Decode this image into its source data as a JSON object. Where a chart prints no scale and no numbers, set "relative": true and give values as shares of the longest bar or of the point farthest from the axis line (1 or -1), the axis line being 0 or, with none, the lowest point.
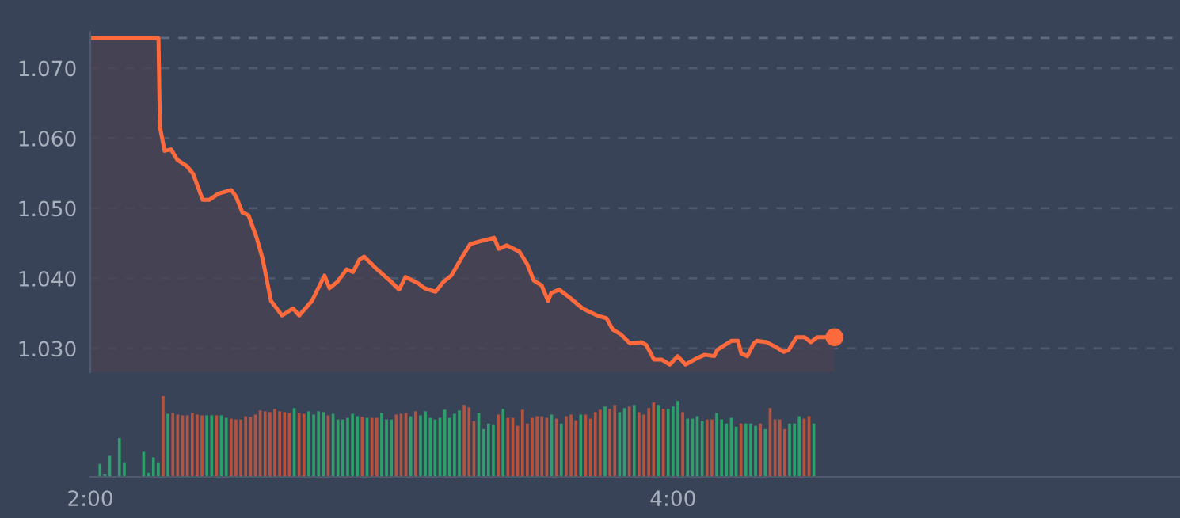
{
  "chart_data": [
    {
      "type": "area",
      "xlim": [
        2,
        5.74
      ],
      "ylim": [
        1.0266,
        1.0752
      ],
      "yticks": [
        {
          "value": 1.03,
          "label": "1.030"
        },
        {
          "value": 1.04,
          "label": "1.040"
        },
        {
          "value": 1.05,
          "label": "1.050"
        },
        {
          "value": 1.06,
          "label": "1.060"
        },
        {
          "value": 1.07,
          "label": "1.070"
        }
      ],
      "tick_labels": "y",
      "grid": "y",
      "ref_lines": [
        {
          "axis": "y",
          "value": 1.0743,
          "color": "#5f6a7e",
          "line_style": "dashed"
        }
      ],
      "series": [
        {
          "type": "area",
          "color": "#ff6a3d",
          "x": [
            2.0,
            2.234,
            2.239,
            2.255,
            2.277,
            2.299,
            2.332,
            2.353,
            2.386,
            2.408,
            2.44,
            2.484,
            2.5,
            2.522,
            2.543,
            2.571,
            2.592,
            2.62,
            2.658,
            2.696,
            2.717,
            2.761,
            2.804,
            2.821,
            2.848,
            2.88,
            2.902,
            2.924,
            2.94,
            2.984,
            3.033,
            3.06,
            3.082,
            3.125,
            3.147,
            3.185,
            3.212,
            3.239,
            3.277,
            3.304,
            3.348,
            3.386,
            3.402,
            3.429,
            3.473,
            3.5,
            3.522,
            3.549,
            3.571,
            3.582,
            3.609,
            3.647,
            3.69,
            3.739,
            3.772,
            3.793,
            3.821,
            3.853,
            3.891,
            3.908,
            3.935,
            3.962,
            3.989,
            4.016,
            4.043,
            4.082,
            4.109,
            4.141,
            4.152,
            4.201,
            4.223,
            4.234,
            4.255,
            4.277,
            4.288,
            4.321,
            4.353,
            4.38,
            4.397,
            4.424,
            4.451,
            4.473,
            4.495,
            4.554
          ],
          "values": [
            1.0743,
            1.0743,
            1.0616,
            1.0582,
            1.0584,
            1.0569,
            1.056,
            1.0549,
            1.0512,
            1.0512,
            1.0521,
            1.0526,
            1.0517,
            1.0494,
            1.049,
            1.0458,
            1.0427,
            1.0368,
            1.0347,
            1.0357,
            1.0347,
            1.0368,
            1.0404,
            1.0386,
            1.0395,
            1.0413,
            1.0409,
            1.0427,
            1.0431,
            1.0413,
            1.0395,
            1.0384,
            1.0402,
            1.0393,
            1.0386,
            1.0381,
            1.0395,
            1.0404,
            1.0431,
            1.0449,
            1.0454,
            1.0458,
            1.0442,
            1.0447,
            1.0438,
            1.042,
            1.0397,
            1.039,
            1.0368,
            1.0379,
            1.0384,
            1.0372,
            1.0357,
            1.0347,
            1.0343,
            1.0327,
            1.032,
            1.0307,
            1.0309,
            1.0305,
            1.0284,
            1.0284,
            1.0277,
            1.0289,
            1.0277,
            1.0286,
            1.0291,
            1.0289,
            1.0298,
            1.0311,
            1.0311,
            1.0293,
            1.0289,
            1.0307,
            1.0311,
            1.0309,
            1.0302,
            1.0295,
            1.0298,
            1.0316,
            1.0316,
            1.0309,
            1.0316,
            1.0316
          ]
        },
        {
          "type": "scatter",
          "color": "#ff6a3d",
          "marker": "circle",
          "x": [
            4.554
          ],
          "values": [
            1.0316
          ]
        }
      ]
    },
    {
      "type": "bar",
      "relative": true,
      "xlim": [
        2,
        5.74
      ],
      "xticks": [
        {
          "value": 2,
          "label": "2:00"
        },
        {
          "value": 4,
          "label": "4:00"
        }
      ],
      "tick_labels": "x",
      "grid": false,
      "x": [
        2.0333,
        2.05,
        2.0667,
        2.0833,
        2.1,
        2.1167,
        2.1333,
        2.15,
        2.1667,
        2.1833,
        2.2,
        2.2167,
        2.2333,
        2.25,
        2.2667,
        2.2833,
        2.3,
        2.3167,
        2.3333,
        2.35,
        2.3667,
        2.3833,
        2.4,
        2.4167,
        2.4333,
        2.45,
        2.4667,
        2.4833,
        2.5,
        2.5167,
        2.5333,
        2.55,
        2.5667,
        2.5833,
        2.6,
        2.6167,
        2.6333,
        2.65,
        2.6667,
        2.6833,
        2.7,
        2.7167,
        2.7333,
        2.75,
        2.7667,
        2.7833,
        2.8,
        2.8167,
        2.8333,
        2.85,
        2.8667,
        2.8833,
        2.9,
        2.9167,
        2.9333,
        2.95,
        2.9667,
        2.9833,
        3,
        3.0167,
        3.0333,
        3.05,
        3.0667,
        3.0833,
        3.1,
        3.1167,
        3.1333,
        3.15,
        3.1667,
        3.1833,
        3.2,
        3.2167,
        3.2333,
        3.25,
        3.2667,
        3.2833,
        3.3,
        3.3167,
        3.3333,
        3.35,
        3.3667,
        3.3833,
        3.4,
        3.4167,
        3.4333,
        3.45,
        3.4667,
        3.4833,
        3.5,
        3.5167,
        3.5333,
        3.55,
        3.5667,
        3.5833,
        3.6,
        3.6167,
        3.6333,
        3.65,
        3.6667,
        3.6833,
        3.7,
        3.7167,
        3.7333,
        3.75,
        3.7667,
        3.7833,
        3.8,
        3.8167,
        3.8333,
        3.85,
        3.8667,
        3.8833,
        3.9,
        3.9167,
        3.9333,
        3.95,
        3.9667,
        3.9833,
        4,
        4.0167,
        4.0333,
        4.05,
        4.0667,
        4.0833,
        4.1,
        4.1167,
        4.1333,
        4.15,
        4.1667,
        4.1833,
        4.2,
        4.2167,
        4.2333,
        4.25,
        4.2667,
        4.2833,
        4.3,
        4.3167,
        4.3333,
        4.35,
        4.3667,
        4.3833,
        4.4,
        4.4167,
        4.4333,
        4.45,
        4.4667,
        4.4833
      ],
      "values": [
        0.16,
        0.03,
        0.26,
        null,
        0.48,
        0.18,
        null,
        null,
        null,
        0.31,
        0.05,
        0.24,
        0.18,
        1.0,
        0.78,
        0.79,
        0.77,
        0.76,
        0.76,
        0.79,
        0.77,
        0.76,
        0.76,
        0.76,
        0.76,
        0.76,
        0.73,
        0.72,
        0.71,
        0.71,
        0.75,
        0.74,
        0.77,
        0.82,
        0.81,
        0.8,
        0.84,
        0.81,
        0.8,
        0.79,
        0.85,
        0.79,
        0.78,
        0.81,
        0.77,
        0.81,
        0.8,
        0.76,
        0.78,
        0.71,
        0.71,
        0.73,
        0.78,
        0.75,
        0.74,
        0.73,
        0.73,
        0.73,
        0.79,
        0.71,
        0.71,
        0.77,
        0.78,
        0.79,
        0.75,
        0.81,
        0.76,
        0.81,
        0.73,
        0.71,
        0.73,
        0.83,
        0.73,
        0.78,
        0.82,
        0.89,
        0.86,
        0.69,
        0.79,
        0.59,
        0.66,
        0.65,
        0.77,
        0.84,
        0.73,
        0.73,
        0.63,
        0.83,
        0.66,
        0.73,
        0.75,
        0.75,
        0.73,
        0.77,
        0.72,
        0.66,
        0.75,
        0.77,
        0.7,
        0.77,
        0.77,
        0.72,
        0.8,
        0.83,
        0.87,
        0.84,
        0.89,
        0.8,
        0.85,
        0.87,
        0.89,
        0.8,
        0.77,
        0.85,
        0.92,
        0.89,
        0.84,
        0.84,
        0.87,
        0.94,
        0.8,
        0.72,
        0.72,
        0.75,
        0.69,
        0.71,
        0.71,
        0.79,
        0.71,
        0.66,
        0.73,
        0.62,
        0.66,
        0.66,
        0.66,
        0.63,
        0.66,
        0.59,
        0.85,
        0.71,
        0.71,
        0.59,
        0.66,
        0.66,
        0.75,
        0.72,
        0.75,
        0.66
      ],
      "colors": [
        "#2e9e6b",
        "#2e9e6b",
        "#2e9e6b",
        "#2e9e6b",
        "#2e9e6b",
        "#2e9e6b",
        "#2e9e6b",
        "#2e9e6b",
        "#2e9e6b",
        "#2e9e6b",
        "#2e9e6b",
        "#2e9e6b",
        "#2e9e6b",
        "#b5533f",
        "#2e9e6b",
        "#b5533f",
        "#b5533f",
        "#b5533f",
        "#b5533f",
        "#b5533f",
        "#b5533f",
        "#b5533f",
        "#2e9e6b",
        "#2e9e6b",
        "#b5533f",
        "#2e9e6b",
        "#2e9e6b",
        "#b5533f",
        "#b5533f",
        "#b5533f",
        "#b5533f",
        "#b5533f",
        "#b5533f",
        "#b5533f",
        "#b5533f",
        "#b5533f",
        "#b5533f",
        "#b5533f",
        "#b5533f",
        "#b5533f",
        "#2e9e6b",
        "#b5533f",
        "#b5533f",
        "#2e9e6b",
        "#2e9e6b",
        "#2e9e6b",
        "#2e9e6b",
        "#b5533f",
        "#2e9e6b",
        "#2e9e6b",
        "#2e9e6b",
        "#2e9e6b",
        "#2e9e6b",
        "#2e9e6b",
        "#b5533f",
        "#2e9e6b",
        "#b5533f",
        "#b5533f",
        "#2e9e6b",
        "#2e9e6b",
        "#2e9e6b",
        "#b5533f",
        "#b5533f",
        "#b5533f",
        "#2e9e6b",
        "#b5533f",
        "#2e9e6b",
        "#2e9e6b",
        "#2e9e6b",
        "#2e9e6b",
        "#2e9e6b",
        "#2e9e6b",
        "#2e9e6b",
        "#2e9e6b",
        "#2e9e6b",
        "#b5533f",
        "#b5533f",
        "#b5533f",
        "#2e9e6b",
        "#2e9e6b",
        "#2e9e6b",
        "#2e9e6b",
        "#b5533f",
        "#2e9e6b",
        "#b5533f",
        "#b5533f",
        "#b5533f",
        "#b5533f",
        "#b5533f",
        "#b5533f",
        "#b5533f",
        "#b5533f",
        "#b5533f",
        "#2e9e6b",
        "#b5533f",
        "#2e9e6b",
        "#b5533f",
        "#b5533f",
        "#b5533f",
        "#2e9e6b",
        "#b5533f",
        "#b5533f",
        "#b5533f",
        "#b5533f",
        "#2e9e6b",
        "#b5533f",
        "#b5533f",
        "#2e9e6b",
        "#2e9e6b",
        "#b5533f",
        "#2e9e6b",
        "#b5533f",
        "#b5533f",
        "#b5533f",
        "#b5533f",
        "#2e9e6b",
        "#b5533f",
        "#2e9e6b",
        "#2e9e6b",
        "#2e9e6b",
        "#b5533f",
        "#2e9e6b",
        "#2e9e6b",
        "#2e9e6b",
        "#2e9e6b",
        "#b5533f",
        "#b5533f",
        "#2e9e6b",
        "#2e9e6b",
        "#2e9e6b",
        "#2e9e6b",
        "#2e9e6b",
        "#b5533f",
        "#2e9e6b",
        "#2e9e6b",
        "#2e9e6b",
        "#b5533f",
        "#2e9e6b",
        "#b5533f",
        "#b5533f",
        "#b5533f",
        "#b5533f",
        "#2e9e6b",
        "#2e9e6b",
        "#2e9e6b",
        "#b5533f",
        "#b5533f",
        "#2e9e6b"
      ]
    }
  ]
}
